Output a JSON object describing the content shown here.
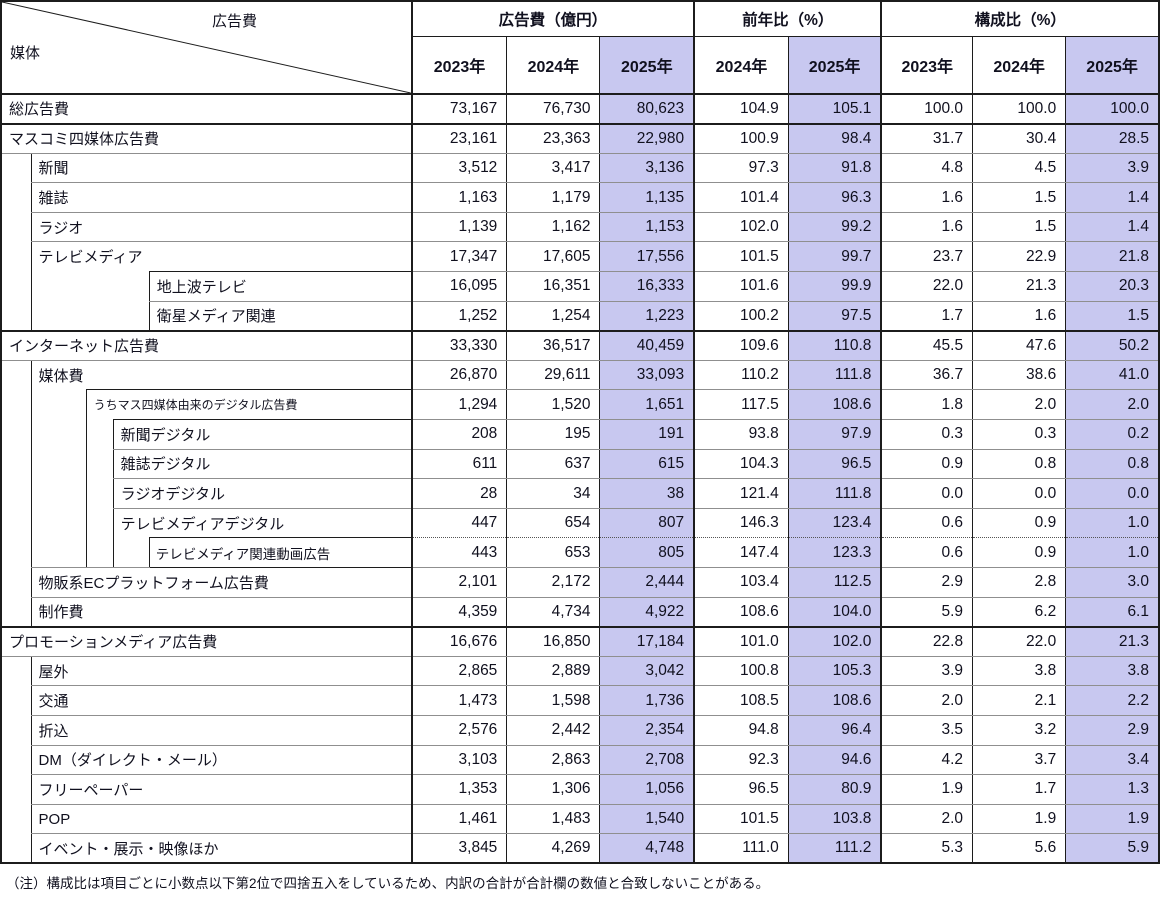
{
  "header": {
    "corner_top": "広告費",
    "corner_bottom": "媒体",
    "groups": [
      {
        "label": "広告費（億円）",
        "years": [
          "2023年",
          "2024年",
          "2025年"
        ]
      },
      {
        "label": "前年比（%）",
        "years": [
          "2024年",
          "2025年"
        ]
      },
      {
        "label": "構成比（%）",
        "years": [
          "2023年",
          "2024年",
          "2025年"
        ]
      }
    ]
  },
  "note": "（注）構成比は項目ごとに小数点以下第2位で四捨五入をしているため、内訳の合計が合計欄の数値と合致しないことがある。",
  "colors": {
    "highlight": "#c8c8f0",
    "border_dark": "#1c1c1c",
    "border_light": "#8f8f8f"
  },
  "chart_data": {
    "type": "table",
    "column_groups": [
      "広告費（億円）",
      "前年比（%）",
      "構成比（%）"
    ],
    "columns": [
      "媒体",
      "広告費 2023年",
      "広告費 2024年",
      "広告費 2025年",
      "前年比 2024年",
      "前年比 2025年",
      "構成比 2023年",
      "構成比 2024年",
      "構成比 2025年"
    ],
    "highlighted_year": "2025年",
    "rows": [
      {
        "label": "総広告費",
        "level": 0,
        "type": "l0",
        "send": true,
        "values": [
          "73,167",
          "76,730",
          "80,623",
          "104.9",
          "105.1",
          "100.0",
          "100.0",
          "100.0"
        ]
      },
      {
        "label": "マスコミ四媒体広告費",
        "level": 0,
        "type": "l0",
        "values": [
          "23,161",
          "23,363",
          "22,980",
          "100.9",
          "98.4",
          "31.7",
          "30.4",
          "28.5"
        ]
      },
      {
        "label": "新聞",
        "level": 1,
        "type": "l1",
        "values": [
          "3,512",
          "3,417",
          "3,136",
          "97.3",
          "91.8",
          "4.8",
          "4.5",
          "3.9"
        ]
      },
      {
        "label": "雑誌",
        "level": 1,
        "type": "l1",
        "values": [
          "1,163",
          "1,179",
          "1,135",
          "101.4",
          "96.3",
          "1.6",
          "1.5",
          "1.4"
        ]
      },
      {
        "label": "ラジオ",
        "level": 1,
        "type": "l1",
        "values": [
          "1,139",
          "1,162",
          "1,153",
          "102.0",
          "99.2",
          "1.6",
          "1.5",
          "1.4"
        ]
      },
      {
        "label": "テレビメディア",
        "level": 1,
        "type": "l1",
        "nolb": true,
        "values": [
          "17,347",
          "17,605",
          "17,556",
          "101.5",
          "99.7",
          "23.7",
          "22.9",
          "21.8"
        ]
      },
      {
        "label": "地上波テレビ",
        "level": 2,
        "type": "l2box",
        "labtop": true,
        "values": [
          "16,095",
          "16,351",
          "16,333",
          "101.6",
          "99.9",
          "22.0",
          "21.3",
          "20.3"
        ]
      },
      {
        "label": "衛星メディア関連",
        "level": 2,
        "type": "l2box",
        "send": true,
        "values": [
          "1,252",
          "1,254",
          "1,223",
          "100.2",
          "97.5",
          "1.7",
          "1.6",
          "1.5"
        ]
      },
      {
        "label": "インターネット広告費",
        "level": 0,
        "type": "l0",
        "values": [
          "33,330",
          "36,517",
          "40,459",
          "109.6",
          "110.8",
          "45.5",
          "47.6",
          "50.2"
        ]
      },
      {
        "label": "媒体費",
        "level": 1,
        "type": "l1",
        "nolb": true,
        "values": [
          "26,870",
          "29,611",
          "33,093",
          "110.2",
          "111.8",
          "36.7",
          "38.6",
          "41.0"
        ]
      },
      {
        "label": "うちマス四媒体由来のデジタル広告費",
        "level": 2,
        "type": "l2b",
        "labtop": true,
        "nolb": true,
        "small": true,
        "values": [
          "1,294",
          "1,520",
          "1,651",
          "117.5",
          "108.6",
          "1.8",
          "2.0",
          "2.0"
        ]
      },
      {
        "label": "新聞デジタル",
        "level": 3,
        "type": "l3",
        "labtop": true,
        "values": [
          "208",
          "195",
          "191",
          "93.8",
          "97.9",
          "0.3",
          "0.3",
          "0.2"
        ]
      },
      {
        "label": "雑誌デジタル",
        "level": 3,
        "type": "l3",
        "values": [
          "611",
          "637",
          "615",
          "104.3",
          "96.5",
          "0.9",
          "0.8",
          "0.8"
        ]
      },
      {
        "label": "ラジオデジタル",
        "level": 3,
        "type": "l3",
        "values": [
          "28",
          "34",
          "38",
          "121.4",
          "111.8",
          "0.0",
          "0.0",
          "0.0"
        ]
      },
      {
        "label": "テレビメディアデジタル",
        "level": 3,
        "type": "l3",
        "nolb": true,
        "dotted": true,
        "values": [
          "447",
          "654",
          "807",
          "146.3",
          "123.4",
          "0.6",
          "0.9",
          "1.0"
        ]
      },
      {
        "label": "テレビメディア関連動画広告",
        "level": 4,
        "type": "l4",
        "blockend": true,
        "values": [
          "443",
          "653",
          "805",
          "147.4",
          "123.3",
          "0.6",
          "0.9",
          "1.0"
        ]
      },
      {
        "label": "物販系ECプラットフォーム広告費",
        "level": 1,
        "type": "l1",
        "values": [
          "2,101",
          "2,172",
          "2,444",
          "103.4",
          "112.5",
          "2.9",
          "2.8",
          "3.0"
        ]
      },
      {
        "label": "制作費",
        "level": 1,
        "type": "l1",
        "send": true,
        "values": [
          "4,359",
          "4,734",
          "4,922",
          "108.6",
          "104.0",
          "5.9",
          "6.2",
          "6.1"
        ]
      },
      {
        "label": "プロモーションメディア広告費",
        "level": 0,
        "type": "l0",
        "values": [
          "16,676",
          "16,850",
          "17,184",
          "101.0",
          "102.0",
          "22.8",
          "22.0",
          "21.3"
        ]
      },
      {
        "label": "屋外",
        "level": 1,
        "type": "l1",
        "values": [
          "2,865",
          "2,889",
          "3,042",
          "100.8",
          "105.3",
          "3.9",
          "3.8",
          "3.8"
        ]
      },
      {
        "label": "交通",
        "level": 1,
        "type": "l1",
        "values": [
          "1,473",
          "1,598",
          "1,736",
          "108.5",
          "108.6",
          "2.0",
          "2.1",
          "2.2"
        ]
      },
      {
        "label": "折込",
        "level": 1,
        "type": "l1",
        "values": [
          "2,576",
          "2,442",
          "2,354",
          "94.8",
          "96.4",
          "3.5",
          "3.2",
          "2.9"
        ]
      },
      {
        "label": "DM（ダイレクト・メール）",
        "level": 1,
        "type": "l1",
        "values": [
          "3,103",
          "2,863",
          "2,708",
          "92.3",
          "94.6",
          "4.2",
          "3.7",
          "3.4"
        ]
      },
      {
        "label": "フリーペーパー",
        "level": 1,
        "type": "l1",
        "values": [
          "1,353",
          "1,306",
          "1,056",
          "96.5",
          "80.9",
          "1.9",
          "1.7",
          "1.3"
        ]
      },
      {
        "label": "POP",
        "level": 1,
        "type": "l1",
        "values": [
          "1,461",
          "1,483",
          "1,540",
          "101.5",
          "103.8",
          "2.0",
          "1.9",
          "1.9"
        ]
      },
      {
        "label": "イベント・展示・映像ほか",
        "level": 1,
        "type": "l1",
        "values": [
          "3,845",
          "4,269",
          "4,748",
          "111.0",
          "111.2",
          "5.3",
          "5.6",
          "5.9"
        ]
      }
    ]
  }
}
